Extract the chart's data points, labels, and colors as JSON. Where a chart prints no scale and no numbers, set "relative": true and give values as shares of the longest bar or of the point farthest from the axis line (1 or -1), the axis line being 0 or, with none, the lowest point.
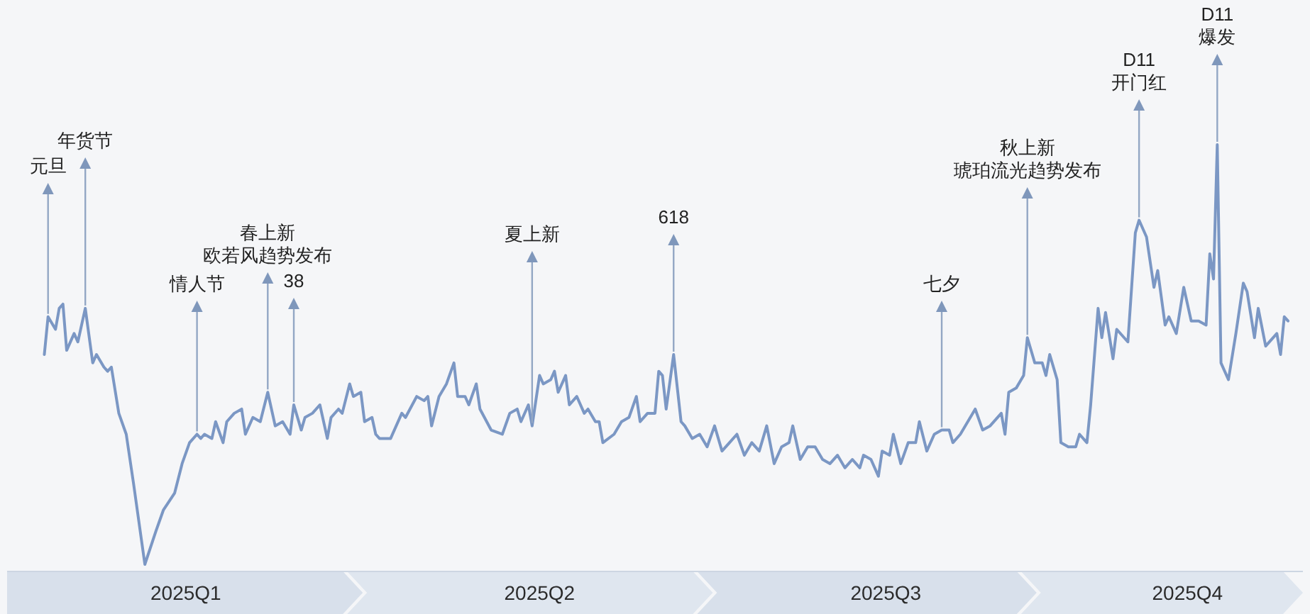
{
  "chart_data": {
    "type": "line",
    "relative": true,
    "color": "#7b97c4",
    "xlim": [
      "2024-12-21",
      "2025-12-04"
    ],
    "xticks": [
      {
        "value": "2025-02-07",
        "label": "2025Q1"
      },
      {
        "value": "2025-05-13",
        "label": "2025Q2"
      },
      {
        "value": "2025-08-14",
        "label": "2025Q3"
      },
      {
        "value": "2025-11-03",
        "label": "2025Q4"
      }
    ],
    "x": [
      "2024-12-31",
      "2025-01-01",
      "2025-01-03",
      "2025-01-04",
      "2025-01-05",
      "2025-01-06",
      "2025-01-08",
      "2025-01-09",
      "2025-01-11",
      "2025-01-13",
      "2025-01-14",
      "2025-01-16",
      "2025-01-17",
      "2025-01-18",
      "2025-01-20",
      "2025-01-22",
      "2025-01-24",
      "2025-01-27",
      "2025-01-30",
      "2025-02-01",
      "2025-02-04",
      "2025-02-06",
      "2025-02-08",
      "2025-02-10",
      "2025-02-11",
      "2025-02-12",
      "2025-02-14",
      "2025-02-15",
      "2025-02-17",
      "2025-02-18",
      "2025-02-20",
      "2025-02-22",
      "2025-02-23",
      "2025-02-25",
      "2025-02-27",
      "2025-03-01",
      "2025-03-03",
      "2025-03-05",
      "2025-03-07",
      "2025-03-08",
      "2025-03-10",
      "2025-03-11",
      "2025-03-13",
      "2025-03-15",
      "2025-03-17",
      "2025-03-18",
      "2025-03-20",
      "2025-03-21",
      "2025-03-23",
      "2025-03-24",
      "2025-03-26",
      "2025-03-27",
      "2025-03-29",
      "2025-03-30",
      "2025-03-31",
      "2025-04-03",
      "2025-04-06",
      "2025-04-07",
      "2025-04-10",
      "2025-04-12",
      "2025-04-13",
      "2025-04-14",
      "2025-04-16",
      "2025-04-18",
      "2025-04-20",
      "2025-04-21",
      "2025-04-23",
      "2025-04-24",
      "2025-04-26",
      "2025-04-27",
      "2025-04-30",
      "2025-05-03",
      "2025-05-05",
      "2025-05-07",
      "2025-05-08",
      "2025-05-10",
      "2025-05-11",
      "2025-05-13",
      "2025-05-14",
      "2025-05-16",
      "2025-05-17",
      "2025-05-18",
      "2025-05-20",
      "2025-05-21",
      "2025-05-23",
      "2025-05-25",
      "2025-05-26",
      "2025-05-28",
      "2025-05-29",
      "2025-05-30",
      "2025-06-02",
      "2025-06-04",
      "2025-06-06",
      "2025-06-08",
      "2025-06-09",
      "2025-06-11",
      "2025-06-13",
      "2025-06-14",
      "2025-06-15",
      "2025-06-16",
      "2025-06-18",
      "2025-06-20",
      "2025-06-21",
      "2025-06-23",
      "2025-06-25",
      "2025-06-27",
      "2025-06-29",
      "2025-07-01",
      "2025-07-03",
      "2025-07-05",
      "2025-07-07",
      "2025-07-09",
      "2025-07-11",
      "2025-07-13",
      "2025-07-15",
      "2025-07-17",
      "2025-07-19",
      "2025-07-20",
      "2025-07-22",
      "2025-07-24",
      "2025-07-26",
      "2025-07-28",
      "2025-07-30",
      "2025-08-01",
      "2025-08-03",
      "2025-08-05",
      "2025-08-07",
      "2025-08-08",
      "2025-08-10",
      "2025-08-12",
      "2025-08-13",
      "2025-08-15",
      "2025-08-16",
      "2025-08-18",
      "2025-08-20",
      "2025-08-22",
      "2025-08-23",
      "2025-08-25",
      "2025-08-27",
      "2025-08-29",
      "2025-08-31",
      "2025-09-01",
      "2025-09-03",
      "2025-09-05",
      "2025-09-07",
      "2025-09-09",
      "2025-09-11",
      "2025-09-14",
      "2025-09-15",
      "2025-09-16",
      "2025-09-18",
      "2025-09-20",
      "2025-09-21",
      "2025-09-23",
      "2025-09-25",
      "2025-09-26",
      "2025-09-27",
      "2025-09-29",
      "2025-09-30",
      "2025-10-02",
      "2025-10-04",
      "2025-10-05",
      "2025-10-07",
      "2025-10-08",
      "2025-10-10",
      "2025-10-11",
      "2025-10-12",
      "2025-10-14",
      "2025-10-15",
      "2025-10-18",
      "2025-10-20",
      "2025-10-21",
      "2025-10-23",
      "2025-10-25",
      "2025-10-26",
      "2025-10-28",
      "2025-10-29",
      "2025-10-31",
      "2025-11-02",
      "2025-11-04",
      "2025-11-06",
      "2025-11-08",
      "2025-11-09",
      "2025-11-10",
      "2025-11-11",
      "2025-11-12",
      "2025-11-14",
      "2025-11-16",
      "2025-11-18",
      "2025-11-19",
      "2025-11-21",
      "2025-11-22",
      "2025-11-24",
      "2025-11-27",
      "2025-11-28",
      "2025-11-29",
      "2025-11-30"
    ],
    "values": [
      0.5,
      0.59,
      0.56,
      0.61,
      0.62,
      0.51,
      0.55,
      0.53,
      0.61,
      0.48,
      0.5,
      0.47,
      0.46,
      0.47,
      0.36,
      0.31,
      0.19,
      0,
      0.08,
      0.13,
      0.17,
      0.24,
      0.29,
      0.31,
      0.3,
      0.31,
      0.3,
      0.34,
      0.29,
      0.34,
      0.36,
      0.37,
      0.31,
      0.35,
      0.34,
      0.41,
      0.33,
      0.34,
      0.31,
      0.38,
      0.32,
      0.35,
      0.36,
      0.38,
      0.3,
      0.35,
      0.37,
      0.36,
      0.43,
      0.4,
      0.41,
      0.34,
      0.35,
      0.31,
      0.3,
      0.3,
      0.36,
      0.35,
      0.4,
      0.39,
      0.4,
      0.33,
      0.4,
      0.43,
      0.48,
      0.4,
      0.4,
      0.38,
      0.43,
      0.37,
      0.32,
      0.31,
      0.36,
      0.37,
      0.34,
      0.38,
      0.33,
      0.45,
      0.43,
      0.44,
      0.46,
      0.41,
      0.45,
      0.38,
      0.4,
      0.36,
      0.37,
      0.34,
      0.34,
      0.29,
      0.31,
      0.34,
      0.35,
      0.4,
      0.34,
      0.36,
      0.36,
      0.46,
      0.45,
      0.37,
      0.5,
      0.34,
      0.33,
      0.3,
      0.31,
      0.28,
      0.33,
      0.27,
      0.29,
      0.31,
      0.26,
      0.29,
      0.27,
      0.33,
      0.24,
      0.28,
      0.29,
      0.33,
      0.25,
      0.28,
      0.28,
      0.25,
      0.24,
      0.26,
      0.23,
      0.25,
      0.23,
      0.26,
      0.25,
      0.21,
      0.27,
      0.26,
      0.31,
      0.24,
      0.29,
      0.29,
      0.34,
      0.27,
      0.31,
      0.32,
      0.32,
      0.29,
      0.31,
      0.34,
      0.37,
      0.32,
      0.33,
      0.36,
      0.31,
      0.41,
      0.42,
      0.45,
      0.54,
      0.48,
      0.48,
      0.45,
      0.5,
      0.44,
      0.29,
      0.28,
      0.28,
      0.31,
      0.29,
      0.38,
      0.61,
      0.54,
      0.6,
      0.49,
      0.56,
      0.53,
      0.79,
      0.82,
      0.78,
      0.66,
      0.7,
      0.57,
      0.59,
      0.55,
      0.66,
      0.58,
      0.58,
      0.57,
      0.74,
      0.68,
      1,
      0.48,
      0.44,
      0.55,
      0.67,
      0.65,
      0.54,
      0.61,
      0.52,
      0.55,
      0.5,
      0.59,
      0.58
    ],
    "annotations": [
      {
        "text": "元旦",
        "x": "2025-01-01",
        "y": 0.59
      },
      {
        "text": "年货节",
        "x": "2025-01-11",
        "y": 0.61
      },
      {
        "text": "情人节",
        "x": "2025-02-10",
        "y": 0.31
      },
      "春上新",
      {
        "text": "欧若风趋势发布",
        "x": "2025-03-01",
        "y": 0.41
      },
      {
        "text": "38",
        "x": "2025-03-08",
        "y": 0.38
      },
      {
        "text": "夏上新",
        "x": "2025-05-11",
        "y": 0.33
      },
      {
        "text": "618",
        "x": "2025-06-18",
        "y": 0.5
      },
      {
        "text": "七夕",
        "x": "2025-08-29",
        "y": 0.32
      },
      "秋上新",
      {
        "text": "琥珀流光趋势发布",
        "x": "2025-09-21",
        "y": 0.54
      },
      {
        "text": "D11\n开门红",
        "x": "2025-10-21",
        "y": 0.82
      },
      {
        "text": "D11\n爆发",
        "x": "2025-11-11",
        "y": 1
      }
    ]
  }
}
